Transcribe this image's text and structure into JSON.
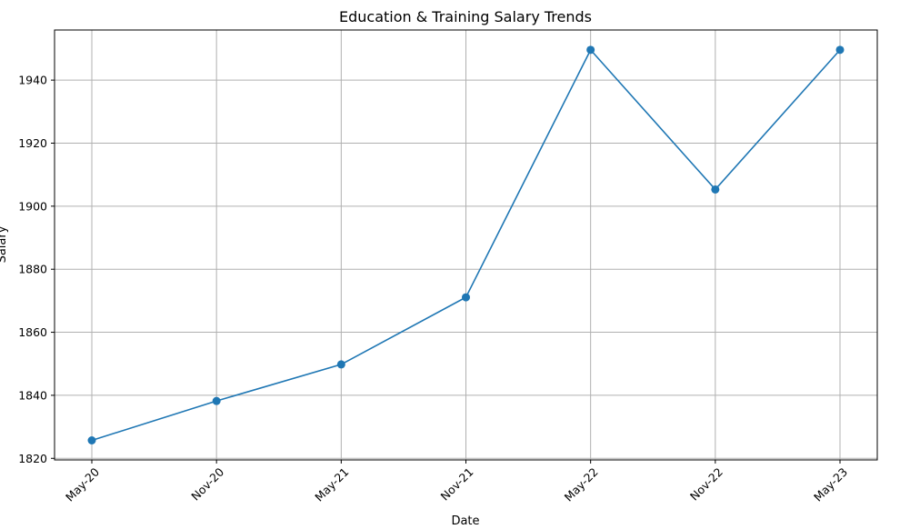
{
  "chart_data": {
    "type": "line",
    "title": "Education & Training Salary Trends",
    "xlabel": "Date",
    "ylabel": "Salary",
    "x": [
      "May-20",
      "Nov-20",
      "May-21",
      "Nov-21",
      "May-22",
      "Nov-22",
      "May-23"
    ],
    "series": [
      {
        "values": [
          1825.7,
          1838.2,
          1849.8,
          1871.1,
          1949.6,
          1905.3,
          1949.6
        ]
      }
    ],
    "yticks": [
      1820,
      1840,
      1860,
      1880,
      1900,
      1920,
      1940
    ],
    "ylim": [
      1819.5,
      1955.9
    ],
    "grid": true,
    "colors": {
      "line": "#1f77b4",
      "grid": "#b0b0b0",
      "axis": "#000000"
    }
  }
}
